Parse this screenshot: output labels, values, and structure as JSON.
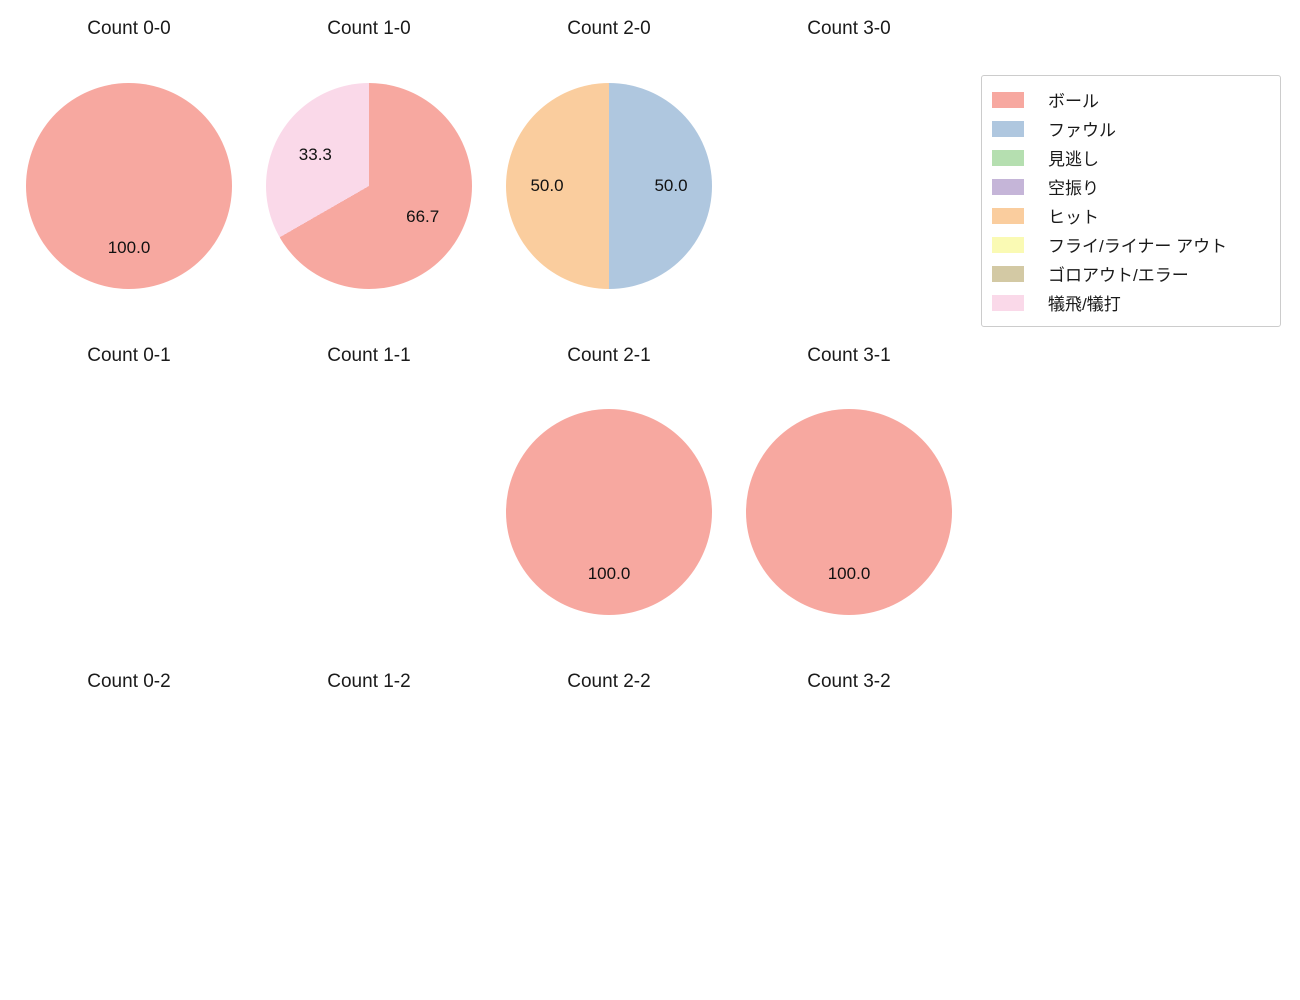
{
  "figure": {
    "background": "#ffffff",
    "legend_position": "upper right"
  },
  "legend": {
    "items": [
      {
        "label": "ボール",
        "color": "#F7A8A0"
      },
      {
        "label": "ファウル",
        "color": "#AFC7DF"
      },
      {
        "label": "見逃し",
        "color": "#B5DFB0"
      },
      {
        "label": "空振り",
        "color": "#C5B5D8"
      },
      {
        "label": "ヒット",
        "color": "#FACD9E"
      },
      {
        "label": "フライ/ライナー アウト",
        "color": "#FAFAB4"
      },
      {
        "label": "ゴロアウト/エラー",
        "color": "#D3C9A4"
      },
      {
        "label": "犠飛/犠打",
        "color": "#FAD9E9"
      }
    ]
  },
  "chart_data": [
    {
      "type": "pie",
      "title": "Count 0-0",
      "slices": [
        {
          "label": "ボール",
          "value": 100.0
        }
      ]
    },
    {
      "type": "pie",
      "title": "Count 1-0",
      "slices": [
        {
          "label": "ボール",
          "value": 66.7
        },
        {
          "label": "犠飛/犠打",
          "value": 33.3
        }
      ]
    },
    {
      "type": "pie",
      "title": "Count 2-0",
      "slices": [
        {
          "label": "ファウル",
          "value": 50.0
        },
        {
          "label": "ヒット",
          "value": 50.0
        }
      ]
    },
    {
      "type": "pie",
      "title": "Count 3-0",
      "slices": []
    },
    {
      "type": "pie",
      "title": "Count 0-1",
      "slices": []
    },
    {
      "type": "pie",
      "title": "Count 1-1",
      "slices": []
    },
    {
      "type": "pie",
      "title": "Count 2-1",
      "slices": [
        {
          "label": "ボール",
          "value": 100.0
        }
      ]
    },
    {
      "type": "pie",
      "title": "Count 3-1",
      "slices": [
        {
          "label": "ボール",
          "value": 100.0
        }
      ]
    },
    {
      "type": "pie",
      "title": "Count 0-2",
      "slices": []
    },
    {
      "type": "pie",
      "title": "Count 1-2",
      "slices": []
    },
    {
      "type": "pie",
      "title": "Count 2-2",
      "slices": []
    },
    {
      "type": "pie",
      "title": "Count 3-2",
      "slices": []
    }
  ]
}
